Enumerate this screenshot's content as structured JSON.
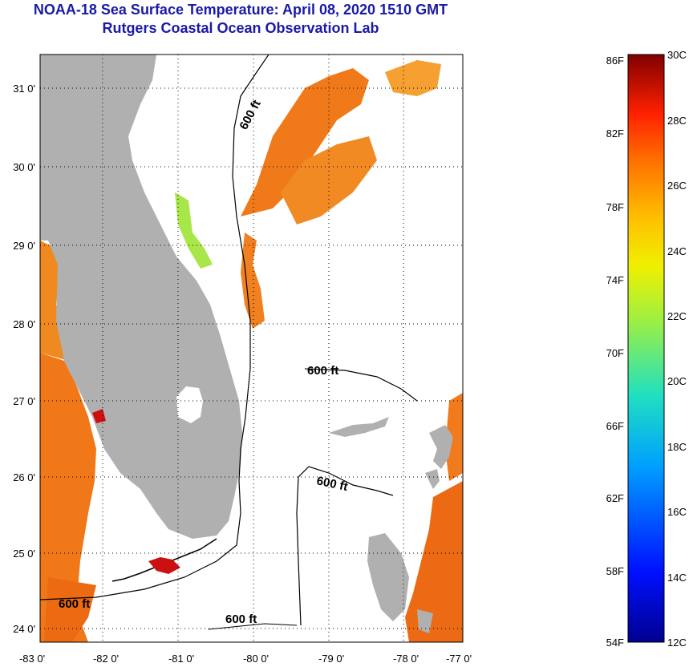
{
  "title": {
    "line1": "NOAA-18 Sea Surface Temperature:  April 08, 2020 1510 GMT",
    "line2": "Rutgers Coastal Ocean Observation Lab"
  },
  "map": {
    "lat_labels": [
      "31 0'",
      "30 0'",
      "29 0'",
      "28 0'",
      "27 0'",
      "26 0'",
      "25 0'",
      "24 0'"
    ],
    "lon_labels": [
      "-83 0'",
      "-82 0'",
      "-81 0'",
      "-80 0'",
      "-79 0'",
      "-78 0'",
      "-77 0'"
    ],
    "contour_labels": [
      "600 ft",
      "600 ft",
      "600 ft",
      "600 ft",
      "600 ft"
    ],
    "land_color": "#b0b0b0"
  },
  "colorbar": {
    "f_labels": [
      "86F",
      "82F",
      "78F",
      "74F",
      "70F",
      "66F",
      "62F",
      "58F",
      "54F"
    ],
    "c_labels": [
      "30C",
      "28C",
      "26C",
      "24C",
      "22C",
      "20C",
      "18C",
      "16C",
      "14C",
      "12C"
    ],
    "min_c": 12,
    "max_c": 30
  }
}
